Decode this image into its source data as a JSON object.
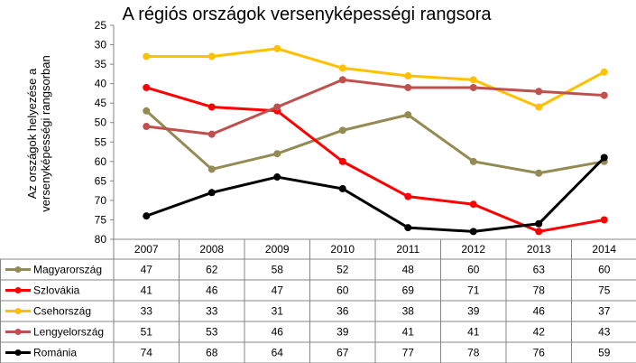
{
  "chart_data": {
    "type": "line",
    "title": "A régiós országok versenyképességi rangsora",
    "ylabel": "Az országok helyezése a versenyképességi rangsorban",
    "ylabel_lines": [
      "Az országok helyezése a",
      "versenyképességi rangsorban"
    ],
    "y_axis": {
      "min": 25,
      "max": 80,
      "step": 5,
      "reversed": true,
      "ticks": [
        25,
        30,
        35,
        40,
        45,
        50,
        55,
        60,
        65,
        70,
        75,
        80
      ]
    },
    "grid": false,
    "legend": "data-table",
    "categories": [
      "2007",
      "2008",
      "2009",
      "2010",
      "2011",
      "2012",
      "2013",
      "2014"
    ],
    "series": [
      {
        "name": "Magyarország",
        "color": "#948a54",
        "values": [
          47,
          62,
          58,
          52,
          48,
          60,
          63,
          60
        ]
      },
      {
        "name": "Szlovákia",
        "color": "#ff0000",
        "values": [
          41,
          46,
          47,
          60,
          69,
          71,
          78,
          75
        ]
      },
      {
        "name": "Csehország",
        "color": "#ffc000",
        "values": [
          33,
          33,
          31,
          36,
          38,
          39,
          46,
          37
        ]
      },
      {
        "name": "Lengyelország",
        "color": "#c0504d",
        "values": [
          51,
          53,
          46,
          39,
          41,
          41,
          42,
          43
        ]
      },
      {
        "name": "Románia",
        "color": "#000000",
        "values": [
          74,
          68,
          64,
          67,
          77,
          78,
          76,
          59
        ]
      }
    ]
  }
}
